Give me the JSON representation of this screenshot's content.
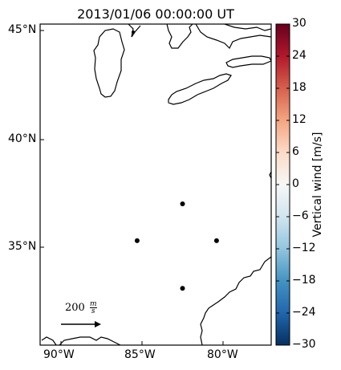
{
  "title": "2013/01/06 00:00:00 UT",
  "map": {
    "lat_labels": [
      "45°N",
      "40°N",
      "35°N"
    ],
    "lon_labels": [
      "90°W",
      "85°W",
      "80°W"
    ],
    "stations": [
      {
        "lon": -82.5,
        "lat": 37.0
      },
      {
        "lon": -85.3,
        "lat": 35.3
      },
      {
        "lon": -80.4,
        "lat": 35.3
      },
      {
        "lon": -82.5,
        "lat": 33.1
      }
    ],
    "scale_arrow": {
      "label": "200",
      "unit_num": "m",
      "unit_den": "s"
    }
  },
  "colorbar": {
    "label": "Vertical wind [m/s]",
    "ticks": [
      "30",
      "24",
      "18",
      "12",
      "6",
      "0",
      "−6",
      "−12",
      "−18",
      "−24",
      "−30"
    ],
    "colors": [
      "#67001f",
      "#b2182b",
      "#d6604d",
      "#f4a582",
      "#fddbc7",
      "#f7f7f7",
      "#d1e5f0",
      "#92c5de",
      "#4393c3",
      "#2166ac",
      "#053061"
    ]
  }
}
